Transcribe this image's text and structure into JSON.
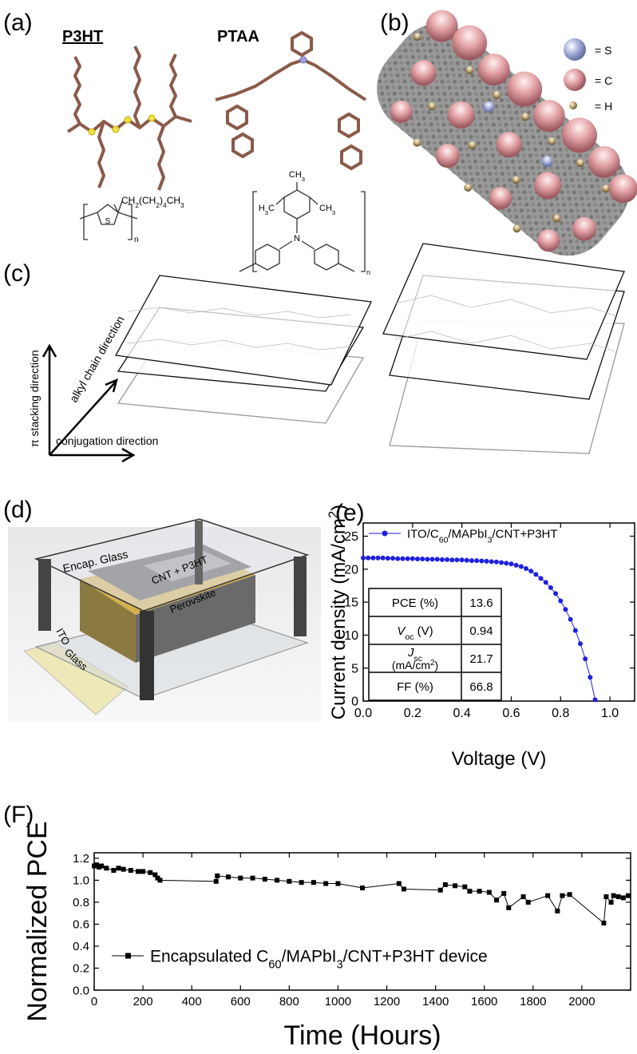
{
  "panel_a": {
    "label": "(a)",
    "p3ht": {
      "name": "P3HT",
      "side_chain": [
        "CH",
        {
          "sub": "2"
        },
        "(CH",
        {
          "sub": "2"
        },
        ")",
        {
          "sub": "4"
        },
        "CH",
        {
          "sub": "3"
        }
      ],
      "atom": "S",
      "repeat": "n"
    },
    "ptaa": {
      "name": "PTAA",
      "methyl_top": [
        "CH",
        {
          "sub": "3"
        }
      ],
      "methyl_left": [
        "H",
        {
          "sub": "3"
        },
        "C"
      ],
      "methyl_right": [
        "CH",
        {
          "sub": "3"
        }
      ],
      "atom": "N",
      "repeat": "n"
    }
  },
  "panel_b": {
    "label": "(b)",
    "legend": [
      "= S",
      "= C",
      "= H"
    ]
  },
  "panel_c": {
    "label": "(c)",
    "axes": [
      "π stacking direction",
      "alkyl chain direction",
      "conjugation direction"
    ]
  },
  "panel_d": {
    "label": "(d)",
    "layers": [
      "Encap. Glass",
      "CNT + P3HT",
      "Perovskite",
      "ITO",
      "Glass"
    ]
  },
  "chart_data": [
    {
      "type": "line",
      "label": "(e)",
      "x_label": "Voltage (V)",
      "y_label": [
        "Current density (mA/cm",
        {
          "sup": "2"
        },
        ")"
      ],
      "xlim": [
        0,
        1.1
      ],
      "ylim": [
        0,
        27
      ],
      "xticks": [
        {
          "value": 0,
          "label": "0.0"
        },
        0.2,
        0.4,
        0.6,
        0.8,
        {
          "value": 1,
          "label": "1.0"
        }
      ],
      "yticks": [
        0,
        5,
        10,
        15,
        20,
        25
      ],
      "series": [
        {
          "name": [
            "ITO/C",
            {
              "sub": "60"
            },
            "/MAPbI",
            {
              "sub": "3"
            },
            "/CNT+P3HT"
          ],
          "color": "#1f1fe0",
          "x": [
            0,
            0.02,
            0.04,
            0.06,
            0.08,
            0.1,
            0.12,
            0.14,
            0.16,
            0.18,
            0.2,
            0.22,
            0.24,
            0.26,
            0.28,
            0.3,
            0.32,
            0.34,
            0.36,
            0.38,
            0.4,
            0.42,
            0.44,
            0.46,
            0.48,
            0.5,
            0.52,
            0.54,
            0.56,
            0.58,
            0.6,
            0.62,
            0.64,
            0.66,
            0.68,
            0.7,
            0.72,
            0.74,
            0.76,
            0.78,
            0.8,
            0.82,
            0.84,
            0.86,
            0.88,
            0.9,
            0.92,
            0.94
          ],
          "values": [
            21.7,
            21.7,
            21.7,
            21.7,
            21.7,
            21.65,
            21.65,
            21.6,
            21.6,
            21.6,
            21.6,
            21.55,
            21.55,
            21.5,
            21.5,
            21.5,
            21.45,
            21.45,
            21.4,
            21.4,
            21.4,
            21.35,
            21.3,
            21.3,
            21.25,
            21.2,
            21.15,
            21.1,
            21.0,
            20.9,
            20.8,
            20.6,
            20.4,
            20.1,
            19.7,
            19.2,
            18.6,
            18.0,
            17.2,
            16.3,
            15.2,
            13.9,
            12.4,
            10.7,
            8.7,
            6.4,
            3.6,
            0.2
          ]
        }
      ],
      "table": {
        "rows": [
          [
            "PCE (%)",
            13.6
          ],
          [
            [
              {
                "i": "V"
              },
              {
                "sub": "oc"
              },
              " (V)"
            ],
            0.94
          ],
          [
            [
              {
                "i": "J"
              },
              {
                "sub": "sc"
              }
            ],
            21.7
          ],
          [
            "FF (%)",
            66.8
          ]
        ],
        "unit_row": [
          "(mA/cm",
          {
            "sup": "2"
          },
          ")"
        ]
      }
    },
    {
      "type": "line",
      "label": "(F)",
      "x_label": "Time (Hours)",
      "y_label": "Normalized PCE",
      "xlim": [
        0,
        2200
      ],
      "ylim": [
        0,
        1.25
      ],
      "xticks": [
        0,
        200,
        400,
        600,
        800,
        1000,
        1200,
        1400,
        1600,
        1800,
        2000
      ],
      "yticks": [
        {
          "value": 0,
          "label": "0.0"
        },
        0.2,
        0.4,
        0.6,
        0.8,
        {
          "value": 1,
          "label": "1.0"
        },
        1.2
      ],
      "series": [
        {
          "name": [
            "Encapsulated C",
            {
              "sub": "60"
            },
            "/MAPbI",
            {
              "sub": "3"
            },
            "/CNT+P3HT device"
          ],
          "color": "#000000",
          "x": [
            0,
            10,
            20,
            30,
            50,
            80,
            100,
            120,
            150,
            180,
            200,
            230,
            250,
            260,
            270,
            500,
            505,
            550,
            600,
            650,
            700,
            750,
            800,
            850,
            900,
            950,
            1000,
            1100,
            1250,
            1270,
            1420,
            1440,
            1480,
            1520,
            1540,
            1580,
            1620,
            1650,
            1680,
            1700,
            1760,
            1780,
            1860,
            1900,
            1920,
            1950,
            2090,
            2100,
            2120,
            2130,
            2150,
            2170,
            2190
          ],
          "values": [
            1.13,
            1.14,
            1.12,
            1.13,
            1.11,
            1.09,
            1.11,
            1.1,
            1.09,
            1.08,
            1.08,
            1.07,
            1.05,
            1.02,
            1.0,
            0.99,
            1.04,
            1.03,
            1.02,
            1.02,
            1.01,
            1.0,
            0.99,
            0.98,
            0.98,
            0.97,
            0.97,
            0.93,
            0.97,
            0.92,
            0.91,
            0.96,
            0.95,
            0.94,
            0.9,
            0.9,
            0.89,
            0.82,
            0.88,
            0.75,
            0.85,
            0.8,
            0.86,
            0.72,
            0.86,
            0.87,
            0.61,
            0.85,
            0.8,
            0.86,
            0.85,
            0.84,
            0.86
          ]
        }
      ]
    }
  ]
}
